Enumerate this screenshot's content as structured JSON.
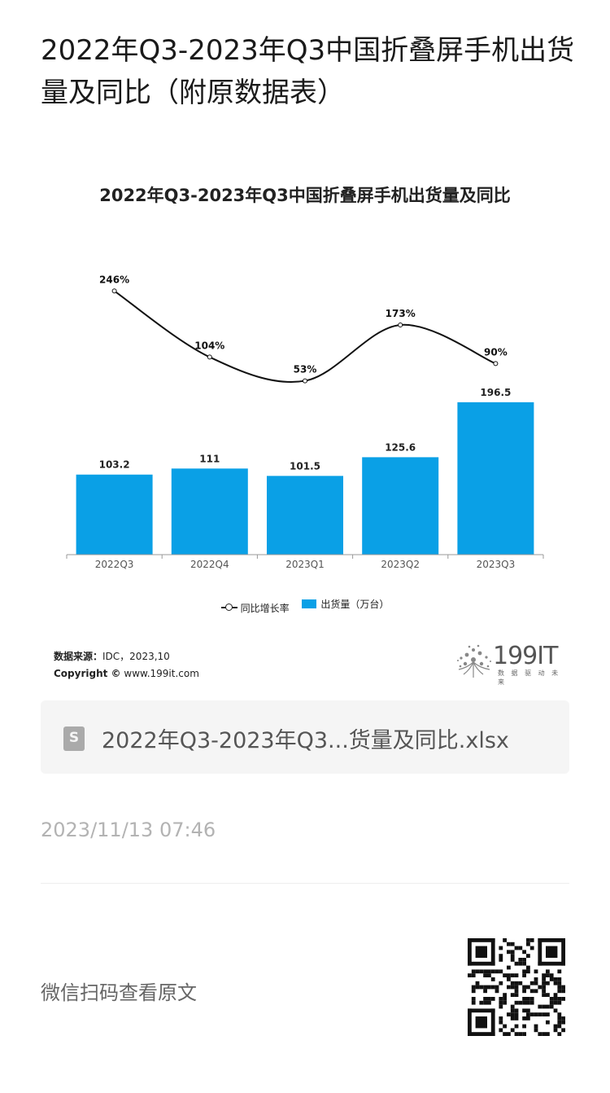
{
  "article": {
    "title": "2022年Q3-2023年Q3中国折叠屏手机出货量及同比（附原数据表）",
    "file_name": "2022年Q3-2023年Q3...货量及同比.xlsx",
    "timestamp": "2023/11/13 07:46",
    "scan_prompt": "微信扫码查看原文"
  },
  "source": {
    "label": "数据来源：",
    "text": "IDC，2023,10",
    "copyright_label": "Copyright ©",
    "copyright_text": "www.199it.com"
  },
  "logo": {
    "name": "199IT",
    "tagline": "数 据 驱 动 未 来"
  },
  "colors": {
    "bar": "#0aa0e6",
    "line": "#111111",
    "axis": "#999999"
  },
  "chart_data": {
    "type": "bar",
    "title": "2022年Q3-2023年Q3中国折叠屏手机出货量及同比",
    "categories": [
      "2022Q3",
      "2022Q4",
      "2023Q1",
      "2023Q2",
      "2023Q3"
    ],
    "series": [
      {
        "name": "出货量（万台）",
        "type": "bar",
        "values": [
          103.2,
          111,
          101.5,
          125.6,
          196.5
        ],
        "labels": [
          "103.2",
          "111",
          "101.5",
          "125.6",
          "196.5"
        ]
      },
      {
        "name": "同比增长率",
        "type": "line",
        "values": [
          246,
          104,
          53,
          173,
          90
        ],
        "labels": [
          "246%",
          "104%",
          "53%",
          "173%",
          "90%"
        ]
      }
    ],
    "ylim": [
      0,
      210
    ],
    "legend": "bottom",
    "grid": false
  }
}
